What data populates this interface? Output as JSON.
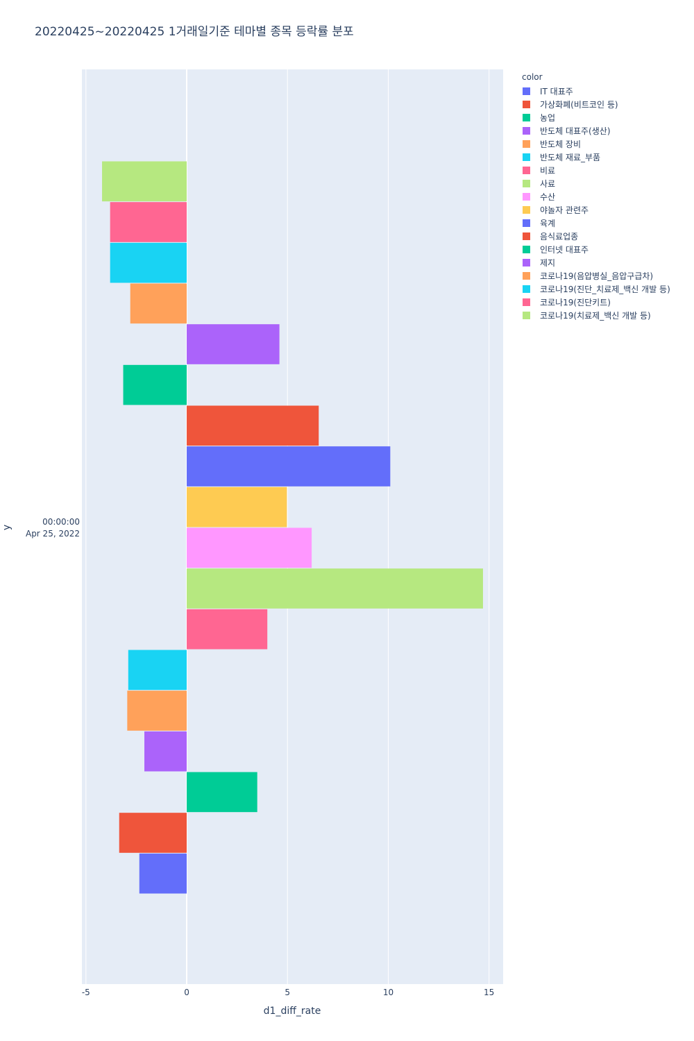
{
  "chart_data": {
    "type": "bar",
    "orientation": "horizontal",
    "barmode": "group",
    "title": "20220425~20220425 1거래일기준 테마별 종목 등락률 분포",
    "xlabel": "d1_diff_rate",
    "ylabel": "y",
    "xlim": [
      -5.2,
      15.7
    ],
    "x_ticks": [
      -5,
      0,
      5,
      10,
      15
    ],
    "y_category": "00:00:00\nApr 25, 2022",
    "y_tick_lines": [
      "00:00:00",
      "Apr 25, 2022"
    ],
    "legend_title": "color",
    "legend_position": "right",
    "grid": true,
    "series": [
      {
        "name": "IT 대표주",
        "color": "#636efa",
        "value": -2.35
      },
      {
        "name": "가상화폐(비트코인 등)",
        "color": "#EF553B",
        "value": -3.35
      },
      {
        "name": "농업",
        "color": "#00cc96",
        "value": 3.5
      },
      {
        "name": "반도체 대표주(생산)",
        "color": "#ab63fa",
        "value": -2.1
      },
      {
        "name": "반도체 장비",
        "color": "#FFA15A",
        "value": -2.95
      },
      {
        "name": "반도체 재료_부품",
        "color": "#19d3f3",
        "value": -2.9
      },
      {
        "name": "비료",
        "color": "#FF6692",
        "value": 4.0
      },
      {
        "name": "사료",
        "color": "#B6E880",
        "value": 14.7
      },
      {
        "name": "수산",
        "color": "#FF97FF",
        "value": 6.2
      },
      {
        "name": "야놀자 관련주",
        "color": "#FECB52",
        "value": 4.97
      },
      {
        "name": "육계",
        "color": "#636efa",
        "value": 10.1
      },
      {
        "name": "음식료업종",
        "color": "#EF553B",
        "value": 6.55
      },
      {
        "name": "인터넷 대표주",
        "color": "#00cc96",
        "value": -3.15
      },
      {
        "name": "제지",
        "color": "#ab63fa",
        "value": 4.6
      },
      {
        "name": "코로나19(음압병실_음압구급차)",
        "color": "#FFA15A",
        "value": -2.8
      },
      {
        "name": "코로나19(진단_치료제_백신 개발 등)",
        "color": "#19d3f3",
        "value": -3.8
      },
      {
        "name": "코로나19(진단키트)",
        "color": "#FF6692",
        "value": -3.8
      },
      {
        "name": "코로나19(치료제_백신 개발 등)",
        "color": "#B6E880",
        "value": -4.2
      }
    ]
  }
}
